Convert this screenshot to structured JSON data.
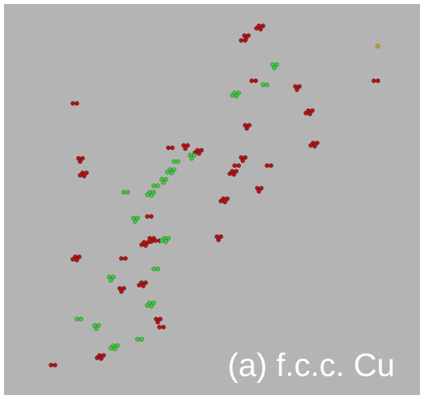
{
  "caption": "(a) f.c.c. Cu"
}
